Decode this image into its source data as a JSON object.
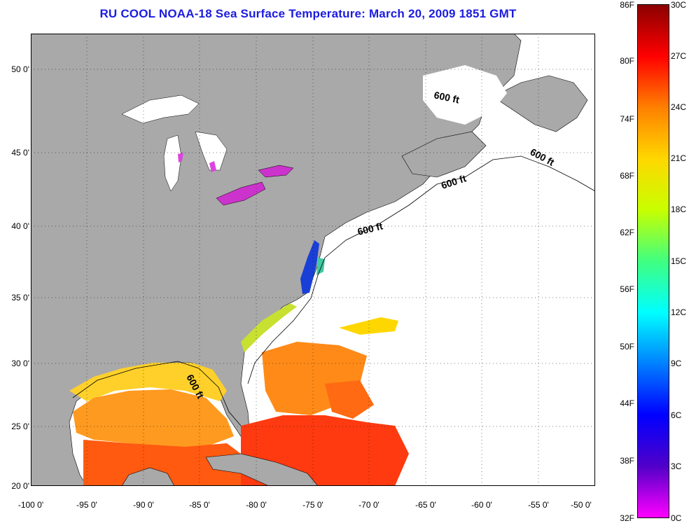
{
  "title": "RU COOL  NOAA-18  Sea Surface Temperature:  March 20, 2009 1851 GMT",
  "map": {
    "lat_labels": [
      "50 0'",
      "45 0'",
      "40 0'",
      "35 0'",
      "30 0'",
      "25 0'",
      "20 0'"
    ],
    "lon_labels": [
      "-100 0'",
      "-95 0'",
      "-90 0'",
      "-85 0'",
      "-80 0'",
      "-75 0'",
      "-70 0'",
      "-65 0'",
      "-60 0'",
      "-55 0'",
      "-50 0'"
    ],
    "isobath_labels": [
      "600 ft",
      "600 ft",
      "600 ft",
      "600 ft",
      "600 ft"
    ],
    "colors": {
      "land": "#a9a9a9",
      "ocean_no_data": "#ffffff",
      "grid": "#000000"
    }
  },
  "colorbar": {
    "f_labels": [
      "86F",
      "80F",
      "74F",
      "68F",
      "62F",
      "56F",
      "50F",
      "44F",
      "38F",
      "32F"
    ],
    "c_labels": [
      "30C",
      "27C",
      "24C",
      "21C",
      "18C",
      "15C",
      "12C",
      "9C",
      "6C",
      "3C",
      "0C"
    ],
    "gradient_stops": [
      "#8b0000",
      "#ff0000",
      "#ff8000",
      "#ffd700",
      "#c8ff00",
      "#40ff80",
      "#00ffff",
      "#0080ff",
      "#0000ff",
      "#5000c8",
      "#ff00ff"
    ]
  }
}
